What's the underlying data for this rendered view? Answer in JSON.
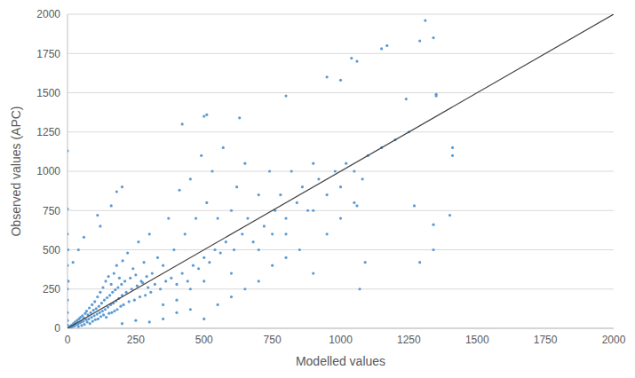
{
  "chart_data": {
    "type": "scatter",
    "x_label": "Modelled values",
    "y_label": "Observed values (APC)",
    "color": "#5b9bd5",
    "marker": "circle",
    "grid": true,
    "xlim": [
      0,
      2000
    ],
    "xticks": [
      0,
      250,
      500,
      750,
      1000,
      1250,
      1500,
      1750,
      2000
    ],
    "ylim": [
      0,
      2000
    ],
    "yticks": [
      0,
      250,
      500,
      750,
      1000,
      1250,
      1500,
      1750,
      2000
    ],
    "reference_line": {
      "x": [
        0,
        2000
      ],
      "y": [
        0,
        2000
      ],
      "color": "#404040"
    },
    "x": [
      5,
      8,
      12,
      15,
      18,
      22,
      25,
      28,
      30,
      35,
      38,
      40,
      42,
      45,
      48,
      50,
      52,
      55,
      58,
      60,
      62,
      65,
      68,
      70,
      72,
      75,
      78,
      80,
      82,
      85,
      88,
      90,
      92,
      95,
      98,
      100,
      102,
      105,
      108,
      110,
      112,
      115,
      118,
      120,
      122,
      125,
      128,
      130,
      132,
      135,
      138,
      140,
      142,
      145,
      148,
      150,
      152,
      155,
      158,
      160,
      162,
      165,
      168,
      170,
      172,
      175,
      178,
      180,
      182,
      185,
      188,
      190,
      195,
      198,
      200,
      202,
      205,
      210,
      215,
      220,
      225,
      230,
      235,
      240,
      245,
      250,
      255,
      260,
      265,
      270,
      275,
      280,
      285,
      290,
      295,
      300,
      305,
      310,
      320,
      330,
      340,
      350,
      360,
      370,
      380,
      390,
      400,
      410,
      420,
      430,
      440,
      450,
      460,
      470,
      480,
      490,
      500,
      510,
      520,
      530,
      540,
      550,
      560,
      570,
      580,
      600,
      610,
      620,
      640,
      650,
      660,
      680,
      700,
      720,
      740,
      750,
      760,
      780,
      800,
      820,
      840,
      860,
      880,
      900,
      920,
      950,
      980,
      1000,
      1020,
      1050,
      1080,
      1100,
      1150,
      1200,
      0,
      0,
      0,
      0,
      0,
      0,
      0,
      0,
      0,
      3,
      2,
      110,
      60,
      40,
      20,
      160,
      180,
      200,
      120,
      200,
      250,
      300,
      350,
      400,
      450,
      500,
      550,
      600,
      650,
      700,
      750,
      800,
      850,
      900,
      950,
      1000,
      350,
      400,
      450,
      500,
      600,
      700,
      800,
      900,
      1050,
      1310,
      1340,
      1290,
      1150,
      1170,
      1040,
      1060,
      1000,
      950,
      1240,
      1350,
      1350,
      800,
      1250,
      1340,
      1340,
      1410,
      1410,
      1400,
      1070,
      1090,
      1290,
      1060,
      1270,
      420,
      500,
      510,
      630
    ],
    "y": [
      3,
      12,
      6,
      20,
      10,
      30,
      15,
      40,
      22,
      50,
      28,
      12,
      60,
      35,
      70,
      40,
      18,
      80,
      45,
      65,
      25,
      95,
      55,
      110,
      40,
      85,
      60,
      130,
      30,
      100,
      70,
      150,
      45,
      115,
      80,
      170,
      55,
      125,
      90,
      200,
      60,
      140,
      100,
      230,
      75,
      160,
      110,
      260,
      85,
      180,
      120,
      300,
      70,
      195,
      135,
      330,
      95,
      210,
      150,
      280,
      100,
      230,
      160,
      350,
      110,
      245,
      175,
      400,
      120,
      260,
      190,
      320,
      140,
      280,
      210,
      430,
      150,
      300,
      230,
      480,
      170,
      320,
      250,
      380,
      180,
      340,
      270,
      550,
      200,
      300,
      290,
      420,
      210,
      330,
      260,
      600,
      230,
      350,
      280,
      450,
      250,
      400,
      300,
      700,
      320,
      500,
      280,
      880,
      350,
      600,
      300,
      950,
      400,
      700,
      380,
      1100,
      450,
      800,
      420,
      1000,
      500,
      700,
      480,
      1150,
      550,
      750,
      500,
      900,
      600,
      1050,
      700,
      550,
      850,
      650,
      1000,
      600,
      750,
      850,
      700,
      1000,
      800,
      900,
      750,
      1050,
      950,
      850,
      1000,
      900,
      1050,
      1000,
      950,
      1100,
      1150,
      1200,
      20,
      50,
      100,
      180,
      250,
      400,
      600,
      760,
      1130,
      300,
      500,
      720,
      580,
      500,
      420,
      780,
      870,
      900,
      650,
      30,
      50,
      40,
      60,
      100,
      120,
      60,
      150,
      200,
      250,
      300,
      400,
      450,
      500,
      350,
      600,
      700,
      150,
      180,
      250,
      300,
      350,
      500,
      600,
      750,
      800,
      1960,
      1850,
      1830,
      1780,
      1800,
      1720,
      1700,
      1580,
      1600,
      1460,
      1490,
      1480,
      1480,
      1250,
      660,
      500,
      1150,
      1100,
      720,
      250,
      420,
      420,
      780,
      780,
      1300,
      1350,
      1360,
      1340
    ]
  }
}
